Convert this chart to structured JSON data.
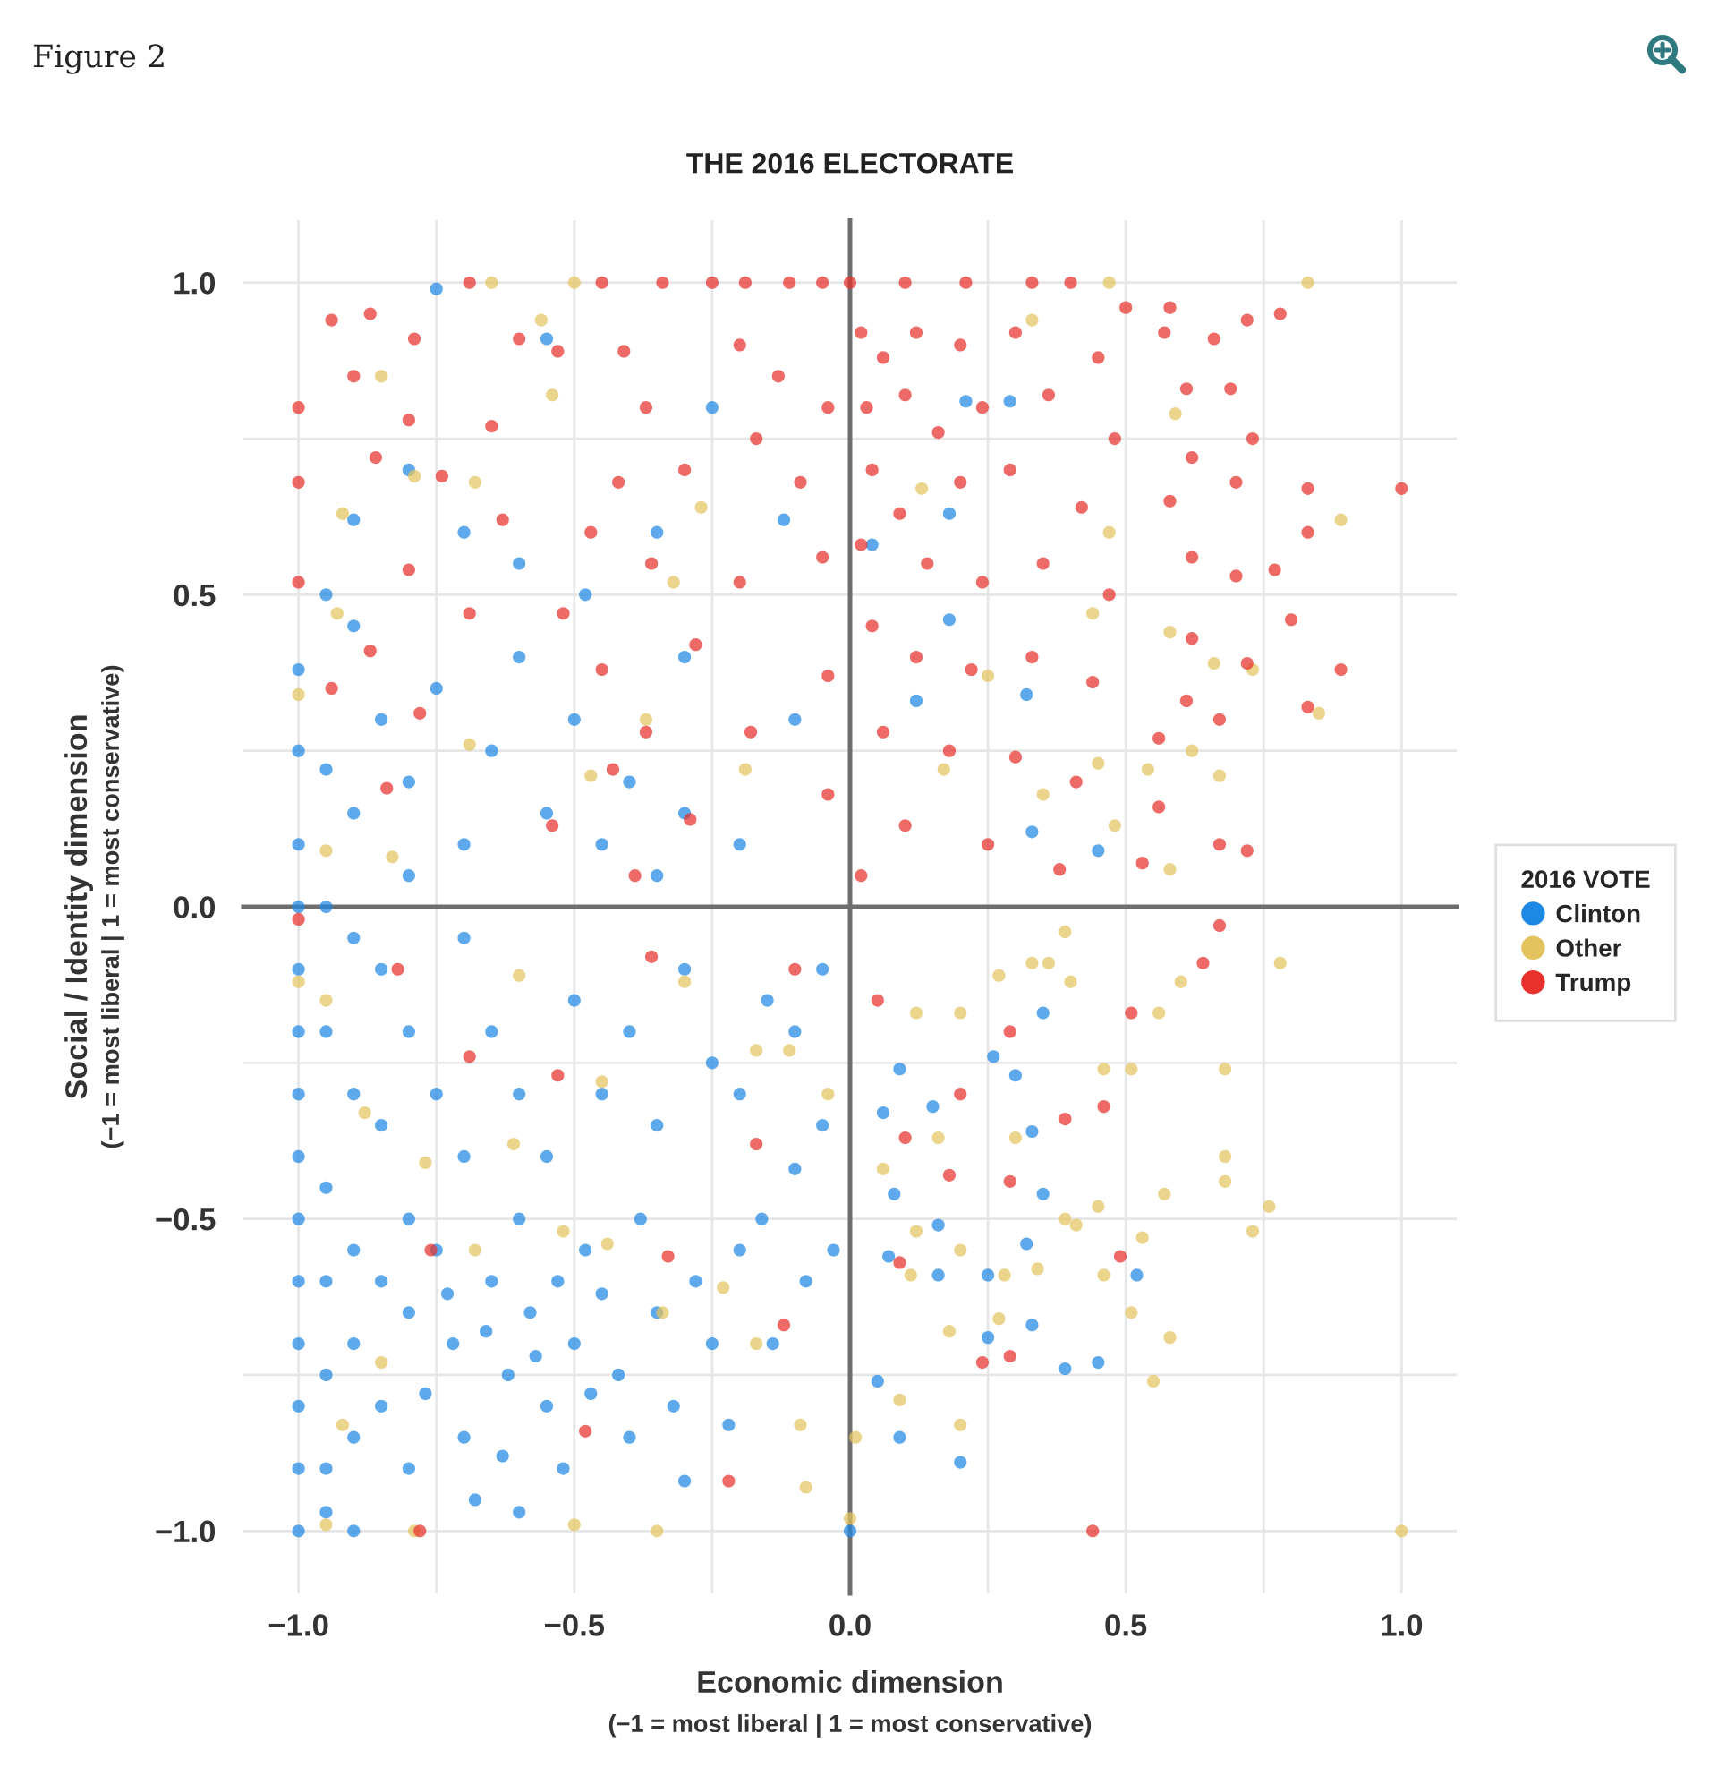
{
  "chart_data": {
    "type": "scatter",
    "title": "THE 2016 ELECTORATE",
    "xlabel": "Economic dimension",
    "ylabel": "Social / Identity dimension",
    "legend_title": "2016 VOTE",
    "annotations": [
      "Figure 2",
      "(−1 = most liberal | 1 = most conservative)",
      "(−1 = most liberal | 1 = most conservative)"
    ],
    "xlim": [
      -1.1,
      1.1
    ],
    "ylim": [
      -1.1,
      1.1
    ],
    "xticks": [
      {
        "value": -1.0,
        "label": "−1.0"
      },
      {
        "value": -0.75,
        "label": null
      },
      {
        "value": -0.5,
        "label": "−0.5"
      },
      {
        "value": -0.25,
        "label": null
      },
      {
        "value": 0,
        "label": "0.0"
      },
      {
        "value": 0.25,
        "label": null
      },
      0.5,
      {
        "value": 0.75,
        "label": null
      },
      {
        "value": 1.0,
        "label": "1.0"
      }
    ],
    "yticks": [
      {
        "value": -1.0,
        "label": "−1.0"
      },
      {
        "value": -0.75,
        "label": null
      },
      {
        "value": -0.5,
        "label": "−0.5"
      },
      {
        "value": -0.25,
        "label": null
      },
      {
        "value": 0,
        "label": "0.0"
      },
      {
        "value": 0.25,
        "label": null
      },
      0.5,
      {
        "value": 0.75,
        "label": null
      },
      {
        "value": 1.0,
        "label": "1.0"
      }
    ],
    "grid": true,
    "legend": "right",
    "marker": "circle",
    "series": [
      {
        "name": "Clinton",
        "color": "#1e88e5",
        "x": [
          -1.0,
          -1.0,
          -1.0,
          -1.0,
          -1.0,
          -1.0,
          -1.0,
          -1.0,
          -1.0,
          -1.0,
          -1.0,
          -1.0,
          -1.0,
          -1.0,
          -0.95,
          -0.95,
          -0.95,
          -0.95,
          -0.95,
          -0.95,
          -0.95,
          -0.95,
          -0.9,
          -0.9,
          -0.9,
          -0.9,
          -0.9,
          -0.9,
          -0.9,
          -0.85,
          -0.85,
          -0.85,
          -0.8,
          -0.8,
          -0.8,
          -0.8,
          -0.8,
          -0.75,
          -0.72,
          -0.7,
          -0.68,
          -0.65,
          -0.62,
          -0.6,
          -0.58,
          -0.55,
          -0.52,
          -0.5,
          -0.48,
          -0.45,
          -0.42,
          -0.4,
          -0.38,
          -0.35,
          -0.32,
          -0.3,
          -0.28,
          -0.25,
          -0.22,
          -0.2,
          -0.16,
          -0.14,
          -0.1,
          -0.08,
          -0.05,
          -0.03,
          -0.77,
          -0.66,
          -0.57,
          -0.63,
          -0.73,
          -0.53,
          -0.47,
          -0.6,
          -0.75,
          -0.7,
          -0.65,
          -0.6,
          -0.55,
          -0.5,
          -0.45,
          -0.4,
          -0.35,
          -0.3,
          -0.25,
          -0.2,
          -0.15,
          -0.1,
          -0.05,
          -0.7,
          -0.85,
          -0.95,
          -0.9,
          -0.85,
          -0.8,
          -0.75,
          -0.7,
          -0.65,
          -0.6,
          -0.55,
          -0.5,
          -0.45,
          -0.4,
          -0.35,
          -0.3,
          -0.2,
          -0.6,
          -0.7,
          -0.8,
          -0.9,
          -0.75,
          -0.55,
          -0.48,
          -0.35,
          -0.3,
          -0.1,
          -0.12,
          -0.25,
          0.52,
          0.45,
          0.39,
          0.33,
          0.32,
          0.35,
          0.33,
          0.3,
          0.26,
          0.35,
          0.2,
          0.09,
          0.05,
          0.25,
          0.25,
          0.16,
          0.16,
          0.08,
          0.09,
          0.15,
          0.06,
          0.07,
          0.0,
          0.29,
          0.21,
          0.18,
          0.04,
          0.18,
          0.12,
          0.32,
          0.33,
          0.45
        ],
        "values": [
          0.38,
          0.25,
          0.1,
          0.0,
          -0.1,
          -0.2,
          -0.3,
          -0.4,
          -0.5,
          -0.6,
          -0.7,
          -0.8,
          -0.9,
          -1.0,
          0.22,
          0.0,
          -0.2,
          -0.45,
          -0.6,
          -0.75,
          -0.9,
          -0.97,
          0.15,
          -0.05,
          -0.3,
          -0.55,
          -0.7,
          -0.85,
          -1.0,
          -0.35,
          -0.6,
          -0.8,
          0.05,
          -0.2,
          -0.5,
          -0.65,
          -0.9,
          -0.55,
          -0.7,
          -0.85,
          -0.95,
          -0.6,
          -0.75,
          -0.5,
          -0.65,
          -0.8,
          -0.9,
          -0.7,
          -0.55,
          -0.62,
          -0.75,
          -0.85,
          -0.5,
          -0.65,
          -0.8,
          -0.92,
          -0.6,
          -0.7,
          -0.83,
          -0.55,
          -0.5,
          -0.7,
          -0.42,
          -0.6,
          -0.35,
          -0.55,
          -0.78,
          -0.68,
          -0.72,
          -0.88,
          -0.62,
          -0.6,
          -0.78,
          -0.97,
          -0.3,
          -0.4,
          -0.2,
          -0.3,
          -0.4,
          -0.15,
          -0.3,
          -0.2,
          -0.35,
          -0.1,
          -0.25,
          -0.3,
          -0.15,
          -0.2,
          -0.1,
          -0.05,
          -0.1,
          0.5,
          0.45,
          0.3,
          0.2,
          0.35,
          0.1,
          0.25,
          0.4,
          0.15,
          0.3,
          0.1,
          0.2,
          0.05,
          0.15,
          0.1,
          0.55,
          0.6,
          0.7,
          0.62,
          0.99,
          0.91,
          0.5,
          0.6,
          0.4,
          0.3,
          0.62,
          0.8,
          -0.59,
          -0.73,
          -0.74,
          -0.67,
          -0.54,
          -0.46,
          -0.36,
          -0.27,
          -0.24,
          -0.17,
          -0.89,
          -0.85,
          -0.76,
          -0.69,
          -0.59,
          -0.59,
          -0.51,
          -0.46,
          -0.26,
          -0.32,
          -0.33,
          -0.56,
          -1.0,
          0.81,
          0.81,
          0.63,
          0.58,
          0.46,
          0.33,
          0.34,
          0.12,
          0.09
        ]
      },
      {
        "name": "Other",
        "color": "#e3c35e",
        "x": [
          0.83,
          0.89,
          0.85,
          0.66,
          0.73,
          0.67,
          0.59,
          0.58,
          0.62,
          0.58,
          0.47,
          0.33,
          0.13,
          0.47,
          0.44,
          0.25,
          0.54,
          0.45,
          0.48,
          0.35,
          0.17,
          1.0,
          0.78,
          0.68,
          0.68,
          0.68,
          0.76,
          0.73,
          0.57,
          0.53,
          0.51,
          0.58,
          0.55,
          0.46,
          0.45,
          0.51,
          0.46,
          0.56,
          0.6,
          0.2,
          0.09,
          0.01,
          0.3,
          0.39,
          0.41,
          0.34,
          0.28,
          0.27,
          0.18,
          0.2,
          0.16,
          0.12,
          0.11,
          0.39,
          0.36,
          0.4,
          0.33,
          0.27,
          0.2,
          0.12,
          0.06,
          0.0,
          -0.65,
          -0.5,
          -0.56,
          -0.85,
          -0.54,
          -0.68,
          -0.79,
          -0.92,
          -0.93,
          -0.32,
          -0.27,
          -0.37,
          -0.47,
          -0.69,
          -0.19,
          -0.95,
          -1.0,
          -0.83,
          -0.95,
          -1.0,
          -0.95,
          -0.79,
          -0.5,
          -0.35,
          -0.08,
          -0.09,
          -0.17,
          -0.23,
          -0.34,
          -0.44,
          -0.52,
          -0.68,
          -0.77,
          -0.61,
          -0.45,
          -0.17,
          -0.11,
          -0.04,
          -0.3,
          -0.6,
          -0.88,
          -0.85,
          -0.92
        ],
        "values": [
          1.0,
          0.62,
          0.31,
          0.39,
          0.38,
          0.21,
          0.79,
          0.44,
          0.25,
          0.06,
          1.0,
          0.94,
          0.67,
          0.6,
          0.47,
          0.37,
          0.22,
          0.23,
          0.13,
          0.18,
          0.22,
          -1.0,
          -0.09,
          -0.26,
          -0.4,
          -0.44,
          -0.48,
          -0.52,
          -0.46,
          -0.53,
          -0.65,
          -0.69,
          -0.76,
          -0.59,
          -0.48,
          -0.26,
          -0.26,
          -0.17,
          -0.12,
          -0.83,
          -0.79,
          -0.85,
          -0.37,
          -0.5,
          -0.51,
          -0.58,
          -0.59,
          -0.66,
          -0.68,
          -0.55,
          -0.37,
          -0.52,
          -0.59,
          -0.04,
          -0.09,
          -0.12,
          -0.09,
          -0.11,
          -0.17,
          -0.17,
          -0.42,
          -0.98,
          1.0,
          1.0,
          0.94,
          0.85,
          0.82,
          0.68,
          0.69,
          0.63,
          0.47,
          0.52,
          0.64,
          0.3,
          0.21,
          0.26,
          0.22,
          0.09,
          0.34,
          0.08,
          -0.15,
          -0.12,
          -0.99,
          -1.0,
          -0.99,
          -1.0,
          -0.93,
          -0.83,
          -0.7,
          -0.61,
          -0.65,
          -0.54,
          -0.52,
          -0.55,
          -0.41,
          -0.38,
          -0.28,
          -0.23,
          -0.23,
          -0.3,
          -0.12,
          -0.11,
          -0.33,
          -0.73,
          -0.83
        ]
      },
      {
        "name": "Trump",
        "color": "#e8302d",
        "x": [
          1.0,
          0.83,
          0.83,
          0.89,
          0.83,
          0.78,
          0.72,
          0.73,
          0.7,
          0.77,
          0.7,
          0.8,
          0.72,
          0.67,
          0.67,
          0.72,
          0.66,
          0.69,
          0.58,
          0.57,
          0.5,
          0.61,
          0.62,
          0.58,
          0.62,
          0.62,
          0.61,
          0.56,
          0.56,
          0.53,
          0.1,
          0.21,
          0.33,
          0.4,
          0.0,
          -0.05,
          -0.11,
          -0.19,
          -0.25,
          -0.34,
          -0.45,
          -0.69,
          0.02,
          0.06,
          0.12,
          0.2,
          0.3,
          0.45,
          0.03,
          0.1,
          0.16,
          0.24,
          0.36,
          0.48,
          0.04,
          0.09,
          0.2,
          0.29,
          0.42,
          0.02,
          0.14,
          0.24,
          0.35,
          0.47,
          0.04,
          0.12,
          0.22,
          0.33,
          0.44,
          0.06,
          0.18,
          0.3,
          0.41,
          0.1,
          0.25,
          0.38,
          0.02,
          -0.94,
          -0.87,
          -0.79,
          -1.0,
          -1.0,
          -1.0,
          -0.9,
          -0.86,
          -0.8,
          -0.74,
          -0.8,
          -0.65,
          -0.6,
          -0.53,
          -0.63,
          -0.47,
          -0.41,
          -0.37,
          -0.42,
          -0.36,
          -0.3,
          -0.2,
          -0.17,
          -0.13,
          -0.09,
          -0.04,
          -0.05,
          -0.2,
          -0.28,
          -0.52,
          -0.69,
          -0.87,
          -0.94,
          -0.78,
          -0.45,
          -0.37,
          -0.04,
          -0.18,
          -0.43,
          -0.04,
          -0.29,
          -0.54,
          -0.84,
          -0.39,
          0.44,
          0.49,
          0.29,
          0.24,
          0.09,
          0.29,
          0.18,
          0.2,
          0.39,
          0.46,
          0.51,
          0.64,
          0.67,
          0.29,
          0.1,
          -1.0,
          -0.82,
          -0.69,
          -0.53,
          -0.36,
          -0.1,
          -0.17,
          -0.12,
          -0.33,
          -0.76,
          -0.48,
          -0.22,
          -0.78,
          0.05
        ],
        "values": [
          0.67,
          0.67,
          0.6,
          0.38,
          0.32,
          0.95,
          0.94,
          0.75,
          0.68,
          0.54,
          0.53,
          0.46,
          0.39,
          0.3,
          0.1,
          0.09,
          0.91,
          0.83,
          0.96,
          0.92,
          0.96,
          0.83,
          0.72,
          0.65,
          0.56,
          0.43,
          0.33,
          0.27,
          0.16,
          0.07,
          1.0,
          1.0,
          1.0,
          1.0,
          1.0,
          1.0,
          1.0,
          1.0,
          1.0,
          1.0,
          1.0,
          1.0,
          0.92,
          0.88,
          0.92,
          0.9,
          0.92,
          0.88,
          0.8,
          0.82,
          0.76,
          0.8,
          0.82,
          0.75,
          0.7,
          0.63,
          0.68,
          0.7,
          0.64,
          0.58,
          0.55,
          0.52,
          0.55,
          0.5,
          0.45,
          0.4,
          0.38,
          0.4,
          0.36,
          0.28,
          0.25,
          0.24,
          0.2,
          0.13,
          0.1,
          0.06,
          0.05,
          0.94,
          0.95,
          0.91,
          0.8,
          0.68,
          0.52,
          0.85,
          0.72,
          0.78,
          0.69,
          0.54,
          0.77,
          0.91,
          0.89,
          0.62,
          0.6,
          0.89,
          0.8,
          0.68,
          0.55,
          0.7,
          0.9,
          0.75,
          0.85,
          0.68,
          0.8,
          0.56,
          0.52,
          0.42,
          0.47,
          0.47,
          0.41,
          0.35,
          0.31,
          0.38,
          0.28,
          0.37,
          0.28,
          0.22,
          0.18,
          0.14,
          0.13,
          0.19,
          0.05,
          -1.0,
          -0.56,
          -0.72,
          -0.73,
          -0.57,
          -0.44,
          -0.43,
          -0.3,
          -0.34,
          -0.32,
          -0.17,
          -0.09,
          -0.03,
          -0.2,
          -0.37,
          -0.02,
          -0.1,
          -0.24,
          -0.27,
          -0.08,
          -0.1,
          -0.38,
          -0.67,
          -0.56,
          -0.55,
          -0.84,
          -0.92,
          -1.0,
          -0.15
        ]
      }
    ]
  }
}
